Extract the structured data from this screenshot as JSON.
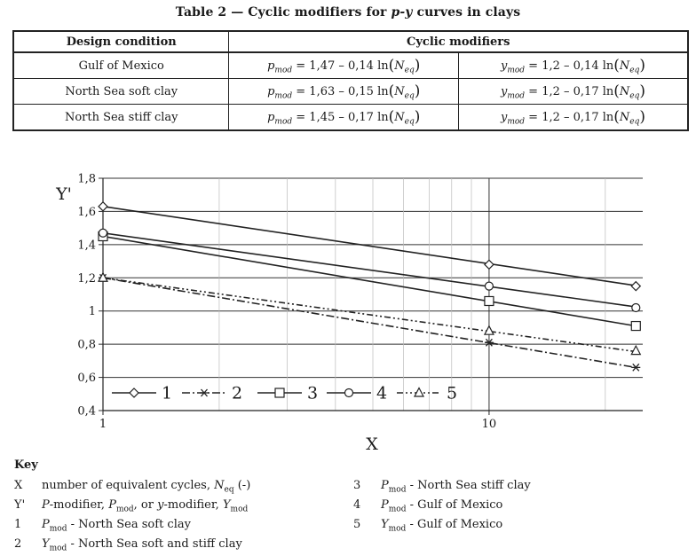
{
  "table": {
    "title_prefix": "Table 2 — Cyclic modifiers for ",
    "title_italic": "p-y",
    "title_suffix": " curves in clays",
    "headers": [
      "Design condition",
      "Cyclic modifiers"
    ],
    "rows": [
      {
        "condition": "Gulf of Mexico",
        "p_var": "p",
        "p_sub": "mod",
        "p_expr": " = 1,47 – 0,14 ln",
        "p_arg": "N",
        "p_arg_sub": "eq",
        "y_var": "y",
        "y_sub": "mod",
        "y_expr": " = 1,2 – 0,14 ln",
        "y_arg": "N",
        "y_arg_sub": "eq"
      },
      {
        "condition": "North Sea soft clay",
        "p_var": "p",
        "p_sub": "mod",
        "p_expr": " = 1,63 – 0,15 ln",
        "p_arg": "N",
        "p_arg_sub": "eq",
        "y_var": "y",
        "y_sub": "mod",
        "y_expr": " = 1,2 – 0,17 ln",
        "y_arg": "N",
        "y_arg_sub": "eq"
      },
      {
        "condition": "North Sea stiff clay",
        "p_var": "p",
        "p_sub": "mod",
        "p_expr": " = 1,45 – 0,17 ln",
        "p_arg": "N",
        "p_arg_sub": "eq",
        "y_var": "y",
        "y_sub": "mod",
        "y_expr": " = 1,2 – 0,17 ln",
        "y_arg": "N",
        "y_arg_sub": "eq"
      }
    ]
  },
  "chart_data": {
    "type": "line",
    "xlabel": "X",
    "ylabel": "Y'",
    "x_scale": "log",
    "xlim": [
      1,
      25
    ],
    "ylim": [
      0.4,
      1.8
    ],
    "yticks": [
      0.4,
      0.6,
      0.8,
      1.0,
      1.2,
      1.4,
      1.6,
      1.8
    ],
    "ytick_labels": [
      "0,4",
      "0,6",
      "0,8",
      "1",
      "1,2",
      "1,4",
      "1,6",
      "1,8"
    ],
    "xticks_labeled": [
      1,
      10
    ],
    "xtick_labels": [
      "1",
      "10"
    ],
    "grid": true,
    "legend_position": "bottom-left inside plot",
    "series": [
      {
        "name": "1",
        "marker": "diamond",
        "dash": "solid",
        "intercept": 1.63,
        "slope": -0.15,
        "x": [
          1,
          10,
          24
        ],
        "y": [
          1.63,
          1.28,
          1.15
        ]
      },
      {
        "name": "2",
        "marker": "asterisk",
        "dash": "dashdot",
        "intercept": 1.2,
        "slope": -0.17,
        "x": [
          1,
          10,
          24
        ],
        "y": [
          1.2,
          0.81,
          0.66
        ]
      },
      {
        "name": "3",
        "marker": "square",
        "dash": "solid",
        "intercept": 1.45,
        "slope": -0.17,
        "x": [
          1,
          10,
          24
        ],
        "y": [
          1.45,
          1.06,
          0.91
        ]
      },
      {
        "name": "4",
        "marker": "circle",
        "dash": "solid",
        "intercept": 1.47,
        "slope": -0.14,
        "x": [
          1,
          10,
          24
        ],
        "y": [
          1.47,
          1.15,
          1.02
        ]
      },
      {
        "name": "5",
        "marker": "triangle",
        "dash": "dashdotdot",
        "intercept": 1.2,
        "slope": -0.14,
        "x": [
          1,
          10,
          24
        ],
        "y": [
          1.2,
          0.88,
          0.76
        ]
      }
    ]
  },
  "key": {
    "title": "Key",
    "items": [
      {
        "id": "X",
        "pre": "number of equivalent cycles, ",
        "v1": "N",
        "s1": "eq",
        "post": " (-)"
      },
      {
        "id": "Y'",
        "pre": "",
        "v1": "P",
        "mid0": "-modifier, ",
        "v2": "P",
        "s2": "mod",
        "mid": ", or ",
        "v3": "y",
        "mid2": "-modifier, ",
        "v4": "Y",
        "s4": "mod"
      },
      {
        "id": "1",
        "v1": "P",
        "s1": "mod",
        "post": " - North Sea soft clay"
      },
      {
        "id": "2",
        "v1": "Y",
        "s1": "mod",
        "post": " - North Sea soft and stiff clay"
      },
      {
        "id": "3",
        "v1": "P",
        "s1": "mod",
        "post": " - North Sea stiff clay"
      },
      {
        "id": "4",
        "v1": "P",
        "s1": "mod",
        "post": " - Gulf of Mexico"
      },
      {
        "id": "5",
        "v1": "Y",
        "s1": "mod",
        "post": " - Gulf of Mexico"
      }
    ]
  }
}
